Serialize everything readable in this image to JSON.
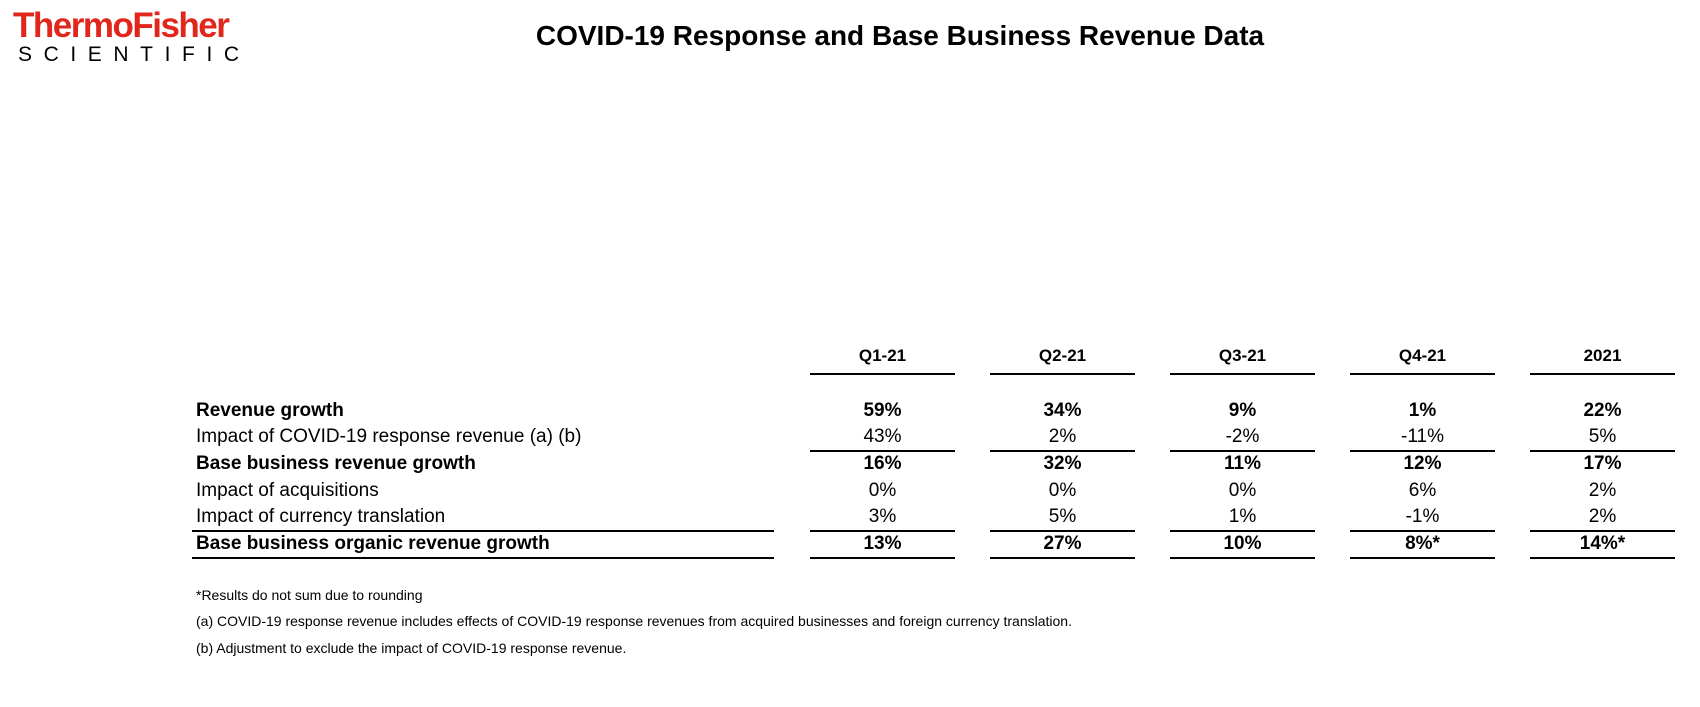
{
  "logo": {
    "line1": "ThermoFisher",
    "line2": "SCIENTIFIC"
  },
  "title": "COVID-19 Response and Base Business Revenue Data",
  "columns": [
    "Q1-21",
    "Q2-21",
    "Q3-21",
    "Q4-21",
    "2021"
  ],
  "rows": [
    {
      "label": "Revenue growth",
      "bold": true,
      "values": [
        "59%",
        "34%",
        "9%",
        "1%",
        "22%"
      ]
    },
    {
      "label": "Impact of COVID-19 response revenue (a) (b)",
      "bold": false,
      "values": [
        "43%",
        "2%",
        "-2%",
        "-11%",
        "5%"
      ]
    },
    {
      "label": "Base business revenue growth",
      "bold": true,
      "values": [
        "16%",
        "32%",
        "11%",
        "12%",
        "17%"
      ]
    },
    {
      "label": "Impact of acquisitions",
      "bold": false,
      "values": [
        "0%",
        "0%",
        "0%",
        "6%",
        "2%"
      ]
    },
    {
      "label": "Impact of currency translation",
      "bold": false,
      "values": [
        "3%",
        "5%",
        "1%",
        "-1%",
        "2%"
      ]
    },
    {
      "label": "Base business organic revenue growth",
      "bold": true,
      "values": [
        "13%",
        "27%",
        "10%",
        "8%*",
        "14%*"
      ]
    }
  ],
  "footnotes": [
    "*Results do not sum due to rounding",
    "(a) COVID-19 response revenue includes effects of COVID-19 response revenues from acquired businesses and foreign currency translation.",
    "(b) Adjustment to exclude the impact of COVID-19 response revenue."
  ]
}
